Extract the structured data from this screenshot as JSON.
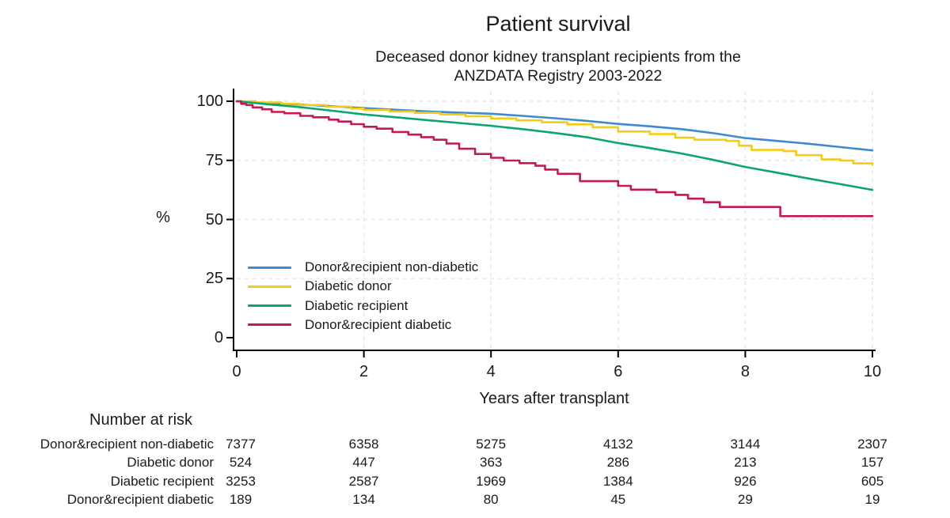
{
  "title": "Patient survival",
  "subtitle_line1": "Deceased donor kidney transplant recipients from the",
  "subtitle_line2": "ANZDATA Registry 2003-2022",
  "chart_data": {
    "type": "line",
    "kind": "kaplan-meier-survival",
    "title": "Patient survival",
    "xlabel": "Years after transplant",
    "ylabel": "%",
    "xlim": [
      0,
      10
    ],
    "ylim": [
      0,
      100
    ],
    "x_ticks": [
      0,
      2,
      4,
      6,
      8,
      10
    ],
    "y_ticks": [
      0,
      25,
      50,
      75,
      100
    ],
    "grid": true,
    "legend_position": "inside-left-middle",
    "axis_color": "#000000",
    "grid_color": "#e7e7e7",
    "series": [
      {
        "name": "Donor&recipient non-diabetic",
        "color": "#3d89d3",
        "mode": "linear",
        "points": [
          [
            0,
            100
          ],
          [
            0.5,
            99.2
          ],
          [
            1,
            98.6
          ],
          [
            1.5,
            97.9
          ],
          [
            2,
            97.1
          ],
          [
            2.5,
            96.4
          ],
          [
            3,
            95.7
          ],
          [
            3.5,
            95.2
          ],
          [
            4,
            94.7
          ],
          [
            4.5,
            93.8
          ],
          [
            5,
            92.8
          ],
          [
            5.5,
            91.7
          ],
          [
            6,
            90.4
          ],
          [
            6.5,
            89.4
          ],
          [
            7,
            88.2
          ],
          [
            7.5,
            86.5
          ],
          [
            8,
            84.4
          ],
          [
            8.5,
            83.2
          ],
          [
            9,
            82.0
          ],
          [
            9.5,
            80.6
          ],
          [
            10,
            79.2
          ]
        ]
      },
      {
        "name": "Diabetic donor",
        "color": "#f2cd17",
        "mode": "step",
        "points": [
          [
            0,
            100
          ],
          [
            0.3,
            99.5
          ],
          [
            0.7,
            98.9
          ],
          [
            1,
            98.4
          ],
          [
            1.4,
            97.7
          ],
          [
            1.8,
            96.9
          ],
          [
            2,
            96.3
          ],
          [
            2.4,
            95.7
          ],
          [
            2.8,
            95.1
          ],
          [
            3.2,
            94.4
          ],
          [
            3.6,
            93.6
          ],
          [
            4,
            92.7
          ],
          [
            4.4,
            91.9
          ],
          [
            4.8,
            91.1
          ],
          [
            5.2,
            90.2
          ],
          [
            5.6,
            89.0
          ],
          [
            6,
            87.2
          ],
          [
            6.5,
            86.1
          ],
          [
            6.9,
            84.6
          ],
          [
            7.2,
            83.7
          ],
          [
            7.7,
            83.2
          ],
          [
            7.9,
            81.2
          ],
          [
            8.1,
            79.4
          ],
          [
            8.6,
            78.9
          ],
          [
            8.8,
            77.2
          ],
          [
            9.2,
            75.4
          ],
          [
            9.5,
            74.9
          ],
          [
            9.7,
            73.7
          ],
          [
            10,
            73.2
          ]
        ]
      },
      {
        "name": "Diabetic recipient",
        "color": "#0ba572",
        "mode": "linear",
        "points": [
          [
            0,
            100
          ],
          [
            0.5,
            98.7
          ],
          [
            1,
            97.5
          ],
          [
            1.5,
            96.0
          ],
          [
            2,
            94.4
          ],
          [
            2.5,
            93.2
          ],
          [
            3,
            92.0
          ],
          [
            3.5,
            90.8
          ],
          [
            4,
            89.6
          ],
          [
            4.5,
            88.2
          ],
          [
            5,
            86.6
          ],
          [
            5.5,
            84.8
          ],
          [
            6,
            82.3
          ],
          [
            6.5,
            80.2
          ],
          [
            7,
            77.9
          ],
          [
            7.5,
            75.2
          ],
          [
            8,
            72.2
          ],
          [
            8.5,
            69.8
          ],
          [
            9,
            67.3
          ],
          [
            9.5,
            64.9
          ],
          [
            10,
            62.5
          ]
        ]
      },
      {
        "name": "Donor&recipient diabetic",
        "color": "#c41a4f",
        "mode": "step",
        "points": [
          [
            0,
            100
          ],
          [
            0.07,
            98.9
          ],
          [
            0.15,
            98.4
          ],
          [
            0.25,
            97.4
          ],
          [
            0.4,
            96.6
          ],
          [
            0.55,
            95.5
          ],
          [
            0.75,
            94.9
          ],
          [
            1,
            93.8
          ],
          [
            1.2,
            93.2
          ],
          [
            1.45,
            92.2
          ],
          [
            1.6,
            91.4
          ],
          [
            1.8,
            90.3
          ],
          [
            2,
            89.2
          ],
          [
            2.2,
            88.4
          ],
          [
            2.45,
            87.0
          ],
          [
            2.7,
            85.9
          ],
          [
            2.9,
            84.8
          ],
          [
            3.1,
            83.7
          ],
          [
            3.3,
            82.1
          ],
          [
            3.5,
            79.9
          ],
          [
            3.75,
            77.7
          ],
          [
            4,
            76.1
          ],
          [
            4.2,
            74.9
          ],
          [
            4.45,
            73.8
          ],
          [
            4.7,
            72.7
          ],
          [
            4.85,
            71.1
          ],
          [
            5.05,
            69.3
          ],
          [
            5.4,
            66.2
          ],
          [
            6,
            64.2
          ],
          [
            6.2,
            62.6
          ],
          [
            6.6,
            61.5
          ],
          [
            6.9,
            60.4
          ],
          [
            7.1,
            58.8
          ],
          [
            7.35,
            57.3
          ],
          [
            7.6,
            55.3
          ],
          [
            8.55,
            51.4
          ],
          [
            10,
            51.4
          ]
        ]
      }
    ]
  },
  "risk_table": {
    "heading": "Number at risk",
    "time_points": [
      0,
      2,
      4,
      6,
      8,
      10
    ],
    "rows": [
      {
        "label": "Donor&recipient non-diabetic",
        "values": [
          7377,
          6358,
          5275,
          4132,
          3144,
          2307
        ]
      },
      {
        "label": "Diabetic donor",
        "values": [
          524,
          447,
          363,
          286,
          213,
          157
        ]
      },
      {
        "label": "Diabetic recipient",
        "values": [
          3253,
          2587,
          1969,
          1384,
          926,
          605
        ]
      },
      {
        "label": "Donor&recipient diabetic",
        "values": [
          189,
          134,
          80,
          45,
          29,
          19
        ]
      }
    ]
  }
}
